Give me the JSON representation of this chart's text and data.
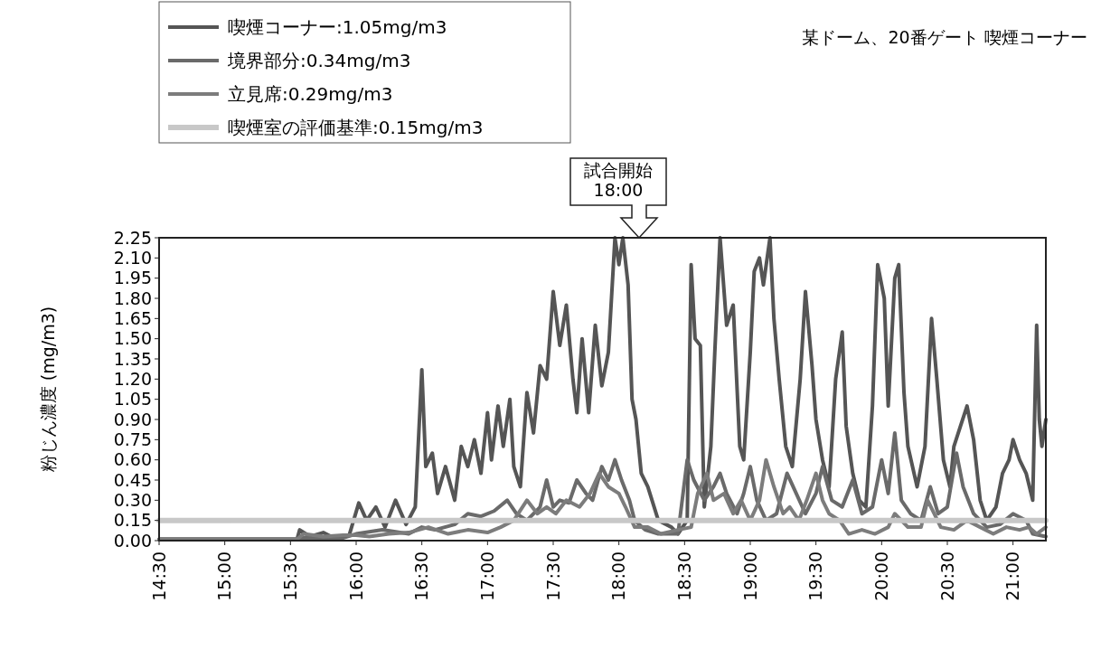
{
  "chart_data": {
    "type": "line",
    "title": "某ドーム、20番ゲート 喫煙コーナー",
    "ylabel": "粉じん濃度 (mg/m3)",
    "legend": "top left",
    "grid": false,
    "line_style": "solid",
    "marker": "none",
    "annotations": [
      "試合開始\n18:00"
    ],
    "xlim": [
      14.5,
      21.25
    ],
    "xticks": [
      {
        "value": 14.5,
        "label": "14:30"
      },
      {
        "value": 15,
        "label": "15:00"
      },
      {
        "value": 15.5,
        "label": "15:30"
      },
      {
        "value": 16,
        "label": "16:00"
      },
      {
        "value": 16.5,
        "label": "16:30"
      },
      {
        "value": 17,
        "label": "17:00"
      },
      {
        "value": 17.5,
        "label": "17:30"
      },
      {
        "value": 18,
        "label": "18:00"
      },
      {
        "value": 18.5,
        "label": "18:30"
      },
      {
        "value": 19,
        "label": "19:00"
      },
      {
        "value": 19.5,
        "label": "19:30"
      },
      {
        "value": 20,
        "label": "20:00"
      },
      {
        "value": 20.5,
        "label": "20:30"
      },
      {
        "value": 21,
        "label": "21:00"
      }
    ],
    "ylim": [
      0,
      2.25
    ],
    "yticks": [
      {
        "value": 0,
        "label": "0.00"
      },
      {
        "value": 0.15,
        "label": "0.15"
      },
      {
        "value": 0.3,
        "label": "0.30"
      },
      {
        "value": 0.45,
        "label": "0.45"
      },
      {
        "value": 0.6,
        "label": "0.60"
      },
      {
        "value": 0.75,
        "label": "0.75"
      },
      {
        "value": 0.9,
        "label": "0.90"
      },
      {
        "value": 1.05,
        "label": "1.05"
      },
      {
        "value": 1.2,
        "label": "1.20"
      },
      {
        "value": 1.35,
        "label": "1.35"
      },
      {
        "value": 1.5,
        "label": "1.50"
      },
      {
        "value": 1.65,
        "label": "1.65"
      },
      {
        "value": 1.8,
        "label": "1.80"
      },
      {
        "value": 1.95,
        "label": "1.95"
      },
      {
        "value": 2.1,
        "label": "2.10"
      },
      {
        "value": 2.25,
        "label": "2.25"
      }
    ],
    "series": [
      {
        "name": "喫煙コーナー:1.05mg/m3",
        "color": "#555555",
        "x": [
          14.5,
          15.55,
          15.57,
          15.65,
          15.75,
          15.85,
          15.95,
          16.02,
          16.08,
          16.15,
          16.22,
          16.3,
          16.38,
          16.45,
          16.5,
          16.53,
          16.58,
          16.62,
          16.68,
          16.75,
          16.8,
          16.85,
          16.9,
          16.95,
          17.0,
          17.03,
          17.08,
          17.12,
          17.17,
          17.2,
          17.25,
          17.3,
          17.35,
          17.4,
          17.45,
          17.5,
          17.55,
          17.6,
          17.65,
          17.68,
          17.72,
          17.77,
          17.82,
          17.87,
          17.92,
          17.97,
          18.0,
          18.03,
          18.07,
          18.1,
          18.13,
          18.17,
          18.22,
          18.3,
          18.4,
          18.45,
          18.52,
          18.55,
          18.58,
          18.62,
          18.65,
          18.7,
          18.73,
          18.77,
          18.82,
          18.87,
          18.92,
          18.95,
          19.0,
          19.03,
          19.07,
          19.1,
          19.15,
          19.18,
          19.22,
          19.27,
          19.32,
          19.38,
          19.42,
          19.47,
          19.5,
          19.55,
          19.6,
          19.65,
          19.7,
          19.73,
          19.78,
          19.83,
          19.88,
          19.93,
          19.97,
          20.02,
          20.05,
          20.1,
          20.13,
          20.17,
          20.2,
          20.27,
          20.33,
          20.38,
          20.42,
          20.47,
          20.52,
          20.55,
          20.6,
          20.65,
          20.7,
          20.75,
          20.8,
          20.87,
          20.92,
          20.97,
          21.0,
          21.05,
          21.1,
          21.15,
          21.18,
          21.2,
          21.22,
          21.25
        ],
        "values": [
          0.01,
          0.01,
          0.08,
          0.03,
          0.06,
          0.01,
          0.05,
          0.28,
          0.15,
          0.25,
          0.1,
          0.3,
          0.12,
          0.25,
          1.27,
          0.55,
          0.65,
          0.35,
          0.55,
          0.3,
          0.7,
          0.55,
          0.75,
          0.5,
          0.95,
          0.6,
          1.0,
          0.7,
          1.05,
          0.55,
          0.4,
          1.1,
          0.8,
          1.3,
          1.2,
          1.85,
          1.45,
          1.75,
          1.2,
          0.95,
          1.5,
          0.95,
          1.6,
          1.15,
          1.4,
          2.25,
          2.05,
          2.25,
          1.9,
          1.05,
          0.9,
          0.5,
          0.4,
          0.15,
          0.1,
          0.05,
          0.15,
          2.05,
          1.5,
          1.45,
          0.25,
          0.7,
          1.4,
          2.25,
          1.6,
          1.75,
          0.7,
          0.6,
          1.4,
          2.0,
          2.1,
          1.9,
          2.25,
          1.65,
          1.2,
          0.7,
          0.55,
          1.2,
          1.85,
          1.3,
          0.9,
          0.6,
          0.4,
          1.2,
          1.55,
          0.85,
          0.5,
          0.3,
          0.25,
          1.0,
          2.05,
          1.8,
          1.0,
          1.95,
          2.05,
          1.1,
          0.7,
          0.4,
          0.7,
          1.65,
          1.2,
          0.6,
          0.4,
          0.7,
          0.85,
          1.0,
          0.75,
          0.3,
          0.15,
          0.25,
          0.5,
          0.6,
          0.75,
          0.6,
          0.5,
          0.3,
          1.6,
          0.9,
          0.7,
          0.9
        ]
      },
      {
        "name": "境界部分:0.34mg/m3",
        "color": "#6a6a6a",
        "x": [
          14.5,
          15.55,
          15.6,
          15.9,
          16.0,
          16.2,
          16.4,
          16.5,
          16.6,
          16.75,
          16.85,
          16.95,
          17.05,
          17.15,
          17.22,
          17.3,
          17.4,
          17.45,
          17.5,
          17.55,
          17.62,
          17.68,
          17.75,
          17.8,
          17.87,
          17.92,
          17.97,
          18.02,
          18.08,
          18.12,
          18.2,
          18.3,
          18.45,
          18.52,
          18.57,
          18.65,
          18.72,
          18.77,
          18.82,
          18.9,
          18.95,
          19.0,
          19.05,
          19.12,
          19.2,
          19.28,
          19.35,
          19.42,
          19.5,
          19.55,
          19.62,
          19.7,
          19.78,
          19.85,
          19.93,
          20.0,
          20.05,
          20.1,
          20.15,
          20.22,
          20.3,
          20.37,
          20.43,
          20.5,
          20.57,
          20.62,
          20.7,
          20.8,
          20.9,
          21.0,
          21.1,
          21.15,
          21.25
        ],
        "values": [
          0.01,
          0.01,
          0.02,
          0.02,
          0.05,
          0.08,
          0.05,
          0.1,
          0.08,
          0.12,
          0.2,
          0.18,
          0.22,
          0.3,
          0.2,
          0.15,
          0.25,
          0.45,
          0.25,
          0.3,
          0.28,
          0.45,
          0.35,
          0.3,
          0.55,
          0.45,
          0.6,
          0.45,
          0.3,
          0.15,
          0.08,
          0.05,
          0.05,
          0.6,
          0.45,
          0.3,
          0.4,
          0.5,
          0.35,
          0.2,
          0.35,
          0.55,
          0.3,
          0.15,
          0.2,
          0.5,
          0.35,
          0.2,
          0.35,
          0.55,
          0.3,
          0.25,
          0.45,
          0.2,
          0.25,
          0.6,
          0.35,
          0.8,
          0.3,
          0.2,
          0.15,
          0.4,
          0.2,
          0.25,
          0.65,
          0.4,
          0.2,
          0.1,
          0.12,
          0.2,
          0.15,
          0.05,
          0.03
        ]
      },
      {
        "name": "立見席:0.29mg/m3",
        "color": "#7c7c7c",
        "x": [
          14.5,
          15.55,
          15.6,
          15.75,
          15.9,
          16.0,
          16.1,
          16.25,
          16.4,
          16.55,
          16.7,
          16.85,
          17.0,
          17.1,
          17.2,
          17.3,
          17.38,
          17.45,
          17.52,
          17.6,
          17.7,
          17.78,
          17.85,
          17.92,
          18.0,
          18.05,
          18.12,
          18.22,
          18.32,
          18.45,
          18.55,
          18.6,
          18.67,
          18.72,
          18.8,
          18.87,
          18.93,
          19.0,
          19.07,
          19.12,
          19.18,
          19.25,
          19.3,
          19.37,
          19.43,
          19.5,
          19.55,
          19.6,
          19.68,
          19.75,
          19.85,
          19.95,
          20.05,
          20.1,
          20.2,
          20.3,
          20.35,
          20.4,
          20.45,
          20.55,
          20.65,
          20.75,
          20.85,
          20.95,
          21.05,
          21.12,
          21.18,
          21.25
        ],
        "values": [
          0.01,
          0.01,
          0.05,
          0.03,
          0.04,
          0.04,
          0.03,
          0.05,
          0.06,
          0.1,
          0.05,
          0.08,
          0.06,
          0.1,
          0.15,
          0.3,
          0.2,
          0.25,
          0.2,
          0.3,
          0.25,
          0.35,
          0.5,
          0.4,
          0.35,
          0.25,
          0.1,
          0.1,
          0.05,
          0.08,
          0.1,
          0.35,
          0.5,
          0.3,
          0.35,
          0.2,
          0.3,
          0.15,
          0.3,
          0.6,
          0.4,
          0.2,
          0.25,
          0.15,
          0.3,
          0.5,
          0.3,
          0.2,
          0.15,
          0.05,
          0.08,
          0.05,
          0.1,
          0.2,
          0.1,
          0.1,
          0.3,
          0.2,
          0.1,
          0.08,
          0.15,
          0.1,
          0.05,
          0.1,
          0.08,
          0.1,
          0.05,
          0.1
        ]
      },
      {
        "name": "喫煙室の評価基準:0.15mg/m3",
        "color": "#c8c8c8",
        "x": [
          14.5,
          21.25
        ],
        "values": [
          0.15,
          0.15
        ]
      }
    ]
  }
}
